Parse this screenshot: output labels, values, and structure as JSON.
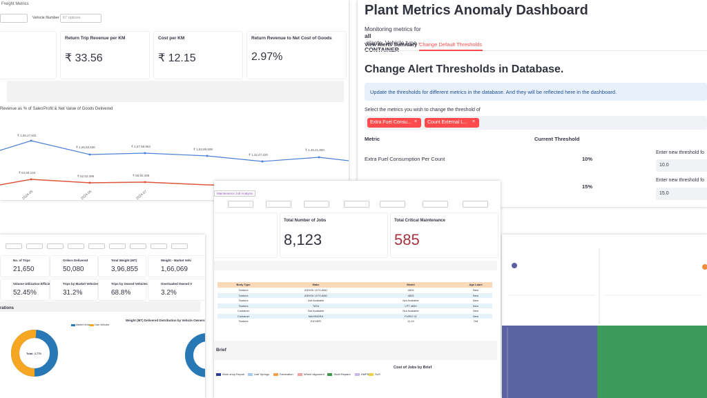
{
  "freight": {
    "header": "Freight Metrics",
    "filter_label": "Vehicle Number",
    "filter_value": "67 options",
    "kpis": [
      {
        "title": "Return Trip Revenue per KM",
        "value": "₹ 33.56"
      },
      {
        "title": "Cost per KM",
        "value": "₹ 12.15"
      },
      {
        "title": "Return Revenue to Net Cost of Goods",
        "value": "2.97%"
      }
    ],
    "tabs": [
      "Revenue as % of Sales",
      "Profit & Net Value of Goods Delivered"
    ],
    "revenue_labels": [
      "₹ 1,65,27,631",
      "₹ 1,55,83,530",
      "₹ 1,57,58,963",
      "₹ 1,53,99,608",
      "₹ 1,32,47,220",
      "₹ 1,45,21,850"
    ],
    "profit_labels": [
      "₹ 64,69,103",
      "₹ 52,52,498",
      "₹ 56,92,408"
    ],
    "x_labels": [
      "2024-05",
      "2024-06",
      "2024-07"
    ]
  },
  "plant": {
    "title": "Plant Metrics Anomaly Dashboard",
    "subtitle": [
      "Monitoring metrics for ",
      "all",
      " plants. Vehicle type - ",
      "CONTAINER"
    ],
    "tabs": [
      "View Alerts Summary",
      "Change Default Thresholds"
    ],
    "heading": "Change Alert Thresholds in Database.",
    "info": "Update the thresholds for different metrics in the database. And they will be reflected here in the dashboard.",
    "select_label": "Select the metrics you wish to change the threshold of",
    "chips": [
      "Extra Fuel Consu...",
      "Count External L..."
    ],
    "table_headers": [
      "Metric",
      "Current Threshold"
    ],
    "rows": [
      {
        "metric": "Extra Fuel Consumption Per Count",
        "threshold": "10%",
        "input_label": "Enter new threshold fo",
        "input": "10.0"
      },
      {
        "threshold": "15%",
        "input_label": "Enter new threshold fo",
        "input": "15.0"
      }
    ]
  },
  "operations": {
    "kpis": [
      {
        "title": "No. of Trips",
        "value": "21,650"
      },
      {
        "title": "Orders Delivered",
        "value": "50,080"
      },
      {
        "title": "Total Weight (MT)",
        "value": "3,96,855"
      },
      {
        "title": "Weight - Market Vehi",
        "value": "1,66,069"
      },
      {
        "title": "Volume Utilization Efficiency",
        "value": "52.45%"
      },
      {
        "title": "Trips by Market Vehicles",
        "value": "31.2%"
      },
      {
        "title": "Trips by Owned Vehicles",
        "value": "68.8%"
      },
      {
        "title": "Overloaded Owned V",
        "value": "3.2%"
      }
    ],
    "section": "rations",
    "legend": [
      "Market Vehicles",
      "Own Vehicles"
    ],
    "chart_title": "Weight (MT) Delivered Distribution by Vehicle Ownership",
    "donut_label": "Total: 2,770"
  },
  "maintenance": {
    "tab": "Maintenance Job Analysis",
    "kpis": [
      {
        "title": "Total Number of Jobs",
        "value": "8,123"
      },
      {
        "title": "Total Critical Maintenance",
        "value": "585"
      }
    ],
    "table": {
      "headers": [
        "Body Type",
        "Make",
        "Model",
        "Age Label"
      ],
      "rows": [
        [
          "Tankers",
          "ASHOK LEYLAND",
          "4825",
          "New"
        ],
        [
          "Tankers",
          "ASHOK LEYLAND",
          "4825",
          "New"
        ],
        [
          "Tankers",
          "Not Available",
          "Not Available",
          "New"
        ],
        [
          "Tankers",
          "TATA",
          "LPT 4830",
          "New"
        ],
        [
          "Container",
          "Not Available",
          "Not Available",
          "New"
        ],
        [
          "Container",
          "MAHINDRA",
          "FURIO 11",
          "New"
        ],
        [
          "Tankers",
          "EICHER",
          "11.10",
          "Old"
        ]
      ]
    },
    "section": "Brief",
    "chart_title": "Cost of Jobs by Brief",
    "legend": [
      "Work shop Repair",
      "Leaf Springs",
      "Fabrication",
      "Wheel alignment",
      "Shaft Repairs",
      "HMPR",
      "SLR"
    ]
  }
}
